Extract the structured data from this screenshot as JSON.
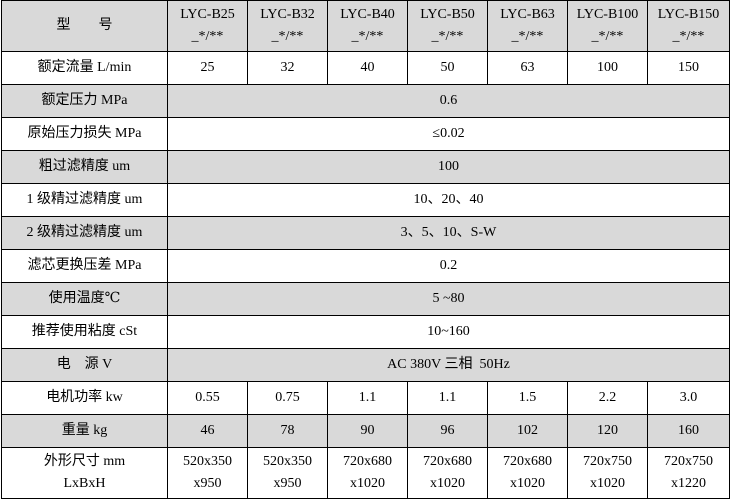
{
  "table": {
    "header": [
      [
        "型　　号"
      ],
      [
        "LYC-B25",
        "_*/**"
      ],
      [
        "LYC-B32",
        "_*/**"
      ],
      [
        "LYC-B40",
        "_*/**"
      ],
      [
        "LYC-B50",
        "_*/**"
      ],
      [
        "LYC-B63",
        "_*/**"
      ],
      [
        "LYC-B100",
        "_*/**"
      ],
      [
        "LYC-B150",
        "_*/**"
      ]
    ],
    "rows": [
      [
        [
          "额定流量 L/min"
        ],
        [
          "25"
        ],
        [
          "32"
        ],
        [
          "40"
        ],
        [
          "50"
        ],
        [
          "63"
        ],
        [
          "100"
        ],
        [
          "150"
        ]
      ],
      [
        [
          "额定压力 MPa"
        ],
        [
          "0.6"
        ]
      ],
      [
        [
          "原始压力损失 MPa"
        ],
        [
          "≤0.02"
        ]
      ],
      [
        [
          "粗过滤精度 um"
        ],
        [
          "100"
        ]
      ],
      [
        [
          "1 级精过滤精度 um"
        ],
        [
          "10、20、40"
        ]
      ],
      [
        [
          "2 级精过滤精度 um"
        ],
        [
          "3、5、10、S-W"
        ]
      ],
      [
        [
          "滤芯更换压差 MPa"
        ],
        [
          "0.2"
        ]
      ],
      [
        [
          "使用温度℃"
        ],
        [
          "5 ~80"
        ]
      ],
      [
        [
          "推荐使用粘度 cSt"
        ],
        [
          "10~160"
        ]
      ],
      [
        [
          "电　源 V"
        ],
        [
          "AC 380V 三相  50Hz"
        ]
      ],
      [
        [
          "电机功率 kw"
        ],
        [
          "0.55"
        ],
        [
          "0.75"
        ],
        [
          "1.1"
        ],
        [
          "1.1"
        ],
        [
          "1.5"
        ],
        [
          "2.2"
        ],
        [
          "3.0"
        ]
      ],
      [
        [
          "重量 kg"
        ],
        [
          "46"
        ],
        [
          "78"
        ],
        [
          "90"
        ],
        [
          "96"
        ],
        [
          "102"
        ],
        [
          "120"
        ],
        [
          "160"
        ]
      ],
      [
        [
          "外形尺寸 mm",
          "LxBxH"
        ],
        [
          "520x350",
          "x950"
        ],
        [
          "520x350",
          "x950"
        ],
        [
          "720x680",
          "x1020"
        ],
        [
          "720x680",
          "x1020"
        ],
        [
          "720x680",
          "x1020"
        ],
        [
          "720x750",
          "x1020"
        ],
        [
          "720x750",
          "x1220"
        ]
      ]
    ]
  }
}
